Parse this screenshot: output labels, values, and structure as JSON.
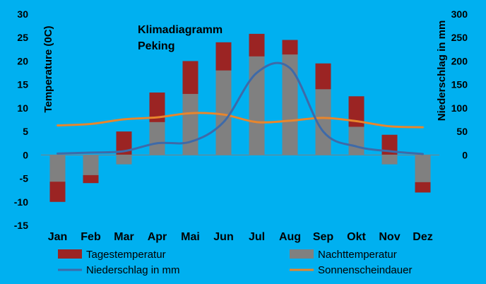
{
  "chart_data": {
    "type": "bar",
    "title": "Klimadiagramm",
    "subtitle": "Peking",
    "ylabel": "Temperature (0C)",
    "y2label": "Niederschlag in mm",
    "ylim": [
      -15,
      30
    ],
    "yticks": [
      30,
      25,
      20,
      15,
      10,
      5,
      0,
      -5,
      -10,
      -15
    ],
    "y2lim": [
      -150,
      300
    ],
    "y2ticks": [
      300,
      250,
      200,
      150,
      100,
      50,
      0
    ],
    "categories": [
      "Jan",
      "Feb",
      "Mar",
      "Apr",
      "Mai",
      "Jun",
      "Jul",
      "Aug",
      "Sep",
      "Okt",
      "Nov",
      "Dez"
    ],
    "series": [
      {
        "name": "Tagestemperatur",
        "type": "bar",
        "color": "#9B2423",
        "values": [
          -10,
          -6,
          5,
          13.3,
          20,
          24,
          25.8,
          24.5,
          19.5,
          12.5,
          4.3,
          -8
        ]
      },
      {
        "name": "Nachttemperatur",
        "type": "bar",
        "color": "#808080",
        "values": [
          -5.7,
          -4.3,
          -2,
          7,
          13,
          18,
          21,
          21.4,
          14,
          6,
          -2,
          -5.8
        ]
      },
      {
        "name": "Niederschlag in mm",
        "type": "line",
        "axis": "right",
        "color": "#3E6AA8",
        "values": [
          3,
          5,
          8,
          25,
          28,
          70,
          175,
          185,
          50,
          18,
          8,
          2
        ]
      },
      {
        "name": "Sonnenscheindauer",
        "type": "line",
        "axis": "left",
        "color": "#E8862C",
        "values": [
          6.3,
          6.6,
          7.6,
          8,
          8.9,
          8.6,
          7,
          7.3,
          7.9,
          7.2,
          6.1,
          5.9
        ]
      }
    ],
    "legend": "bottom",
    "grid": false
  }
}
